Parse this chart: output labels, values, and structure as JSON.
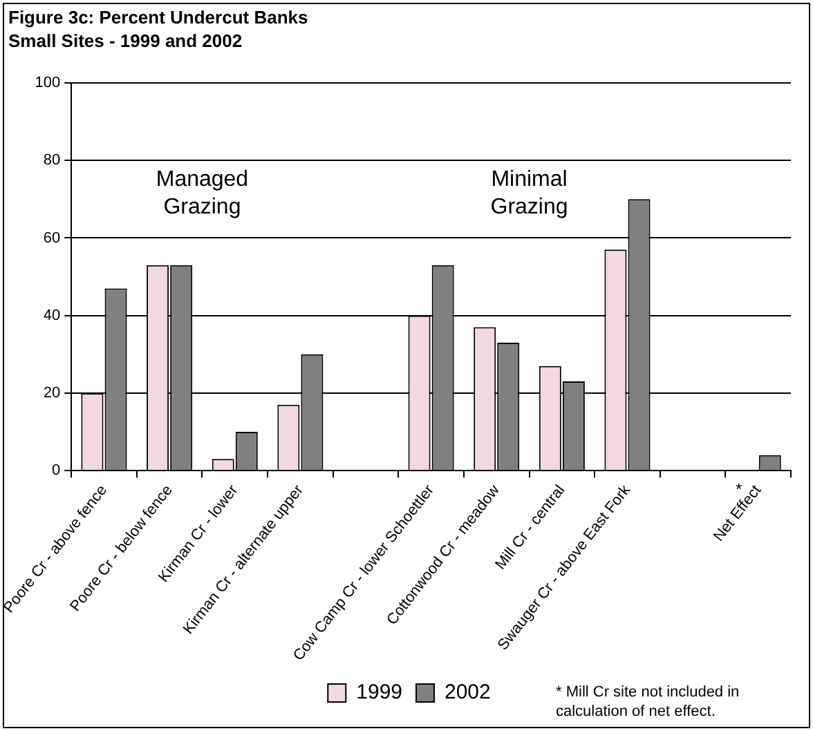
{
  "chart_data": {
    "type": "bar",
    "title": "Figure 3c: Percent Undercut Banks",
    "subtitle": "Small Sites - 1999 and 2002",
    "categories": [
      "Poore Cr - above fence",
      "Poore Cr - below fence",
      "Kirman Cr - lower",
      "Kirman Cr - alternate upper",
      null,
      "Cow Camp Cr - lower Schoettler",
      "Cottonwood Cr - meadow",
      "Mill Cr - central",
      "Swauger Cr - above East Fork",
      null,
      "Net Effect"
    ],
    "series": [
      {
        "name": "1999",
        "color": "#f2d8e2",
        "values": [
          20,
          53,
          3,
          17,
          null,
          40,
          37,
          27,
          57,
          null,
          null
        ]
      },
      {
        "name": "2002",
        "color": "#808080",
        "values": [
          47,
          53,
          10,
          30,
          null,
          53,
          33,
          23,
          70,
          null,
          4
        ]
      }
    ],
    "ylim": [
      0,
      100
    ],
    "yticks": [
      0,
      20,
      40,
      60,
      80,
      100
    ],
    "grid": "y",
    "legend": "bottom",
    "annotations": [
      "Managed Grazing",
      "Minimal Grazing",
      {
        "text": "*",
        "x": "Net Effect",
        "y": 0
      },
      "* Mill Cr site not included in calculation of net effect."
    ]
  }
}
